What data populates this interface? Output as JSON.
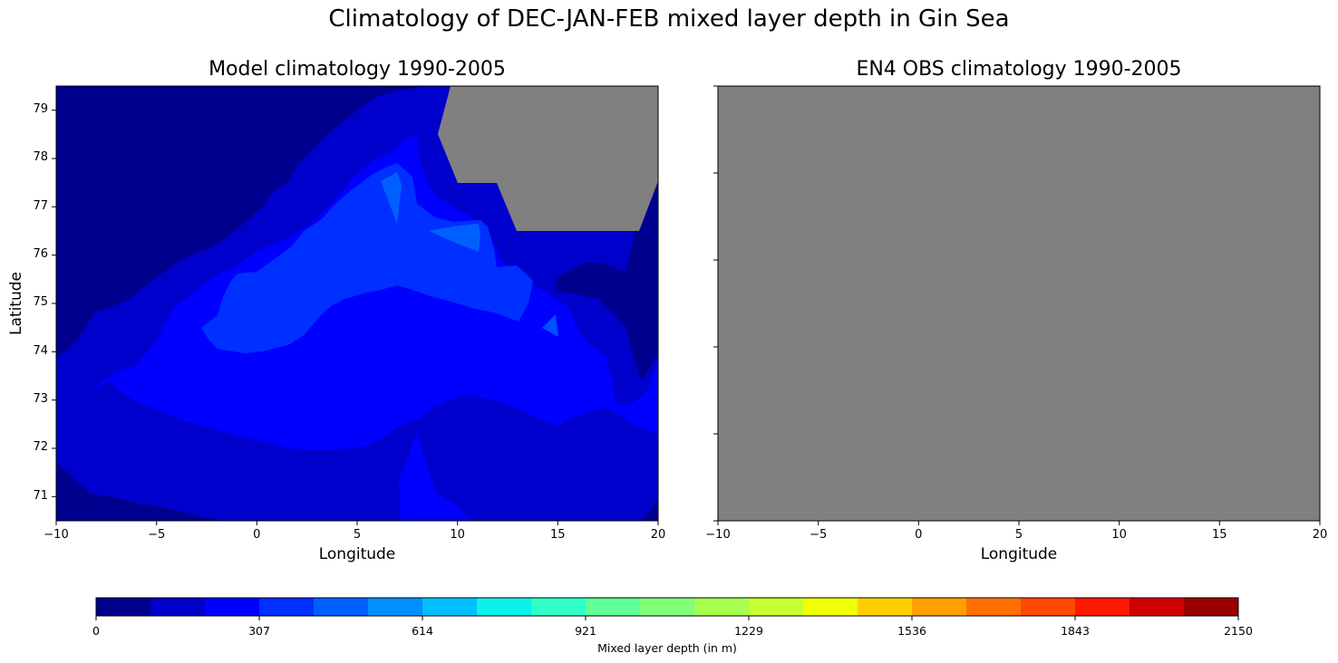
{
  "figure": {
    "suptitle": "Climatology of DEC-JAN-FEB mixed layer depth in Gin Sea",
    "land_color": "#808080"
  },
  "panels": {
    "left": {
      "title": "Model climatology 1990-2005",
      "xlabel": "Longitude",
      "ylabel": "Latitude",
      "xticks": [
        "−10",
        "−5",
        "0",
        "5",
        "10",
        "15",
        "20"
      ],
      "yticks": [
        "79",
        "78",
        "77",
        "76",
        "75",
        "74",
        "73",
        "72",
        "71"
      ]
    },
    "right": {
      "title": "EN4 OBS climatology 1990-2005",
      "xlabel": "Longitude",
      "xticks": [
        "−10",
        "−5",
        "0",
        "5",
        "10",
        "15",
        "20"
      ]
    }
  },
  "colorbar": {
    "label": "Mixed layer depth (in m)",
    "ticks": [
      "0",
      "307",
      "614",
      "921",
      "1229",
      "1536",
      "1843",
      "2150"
    ],
    "colors": [
      "#00008f",
      "#0000cc",
      "#0000ff",
      "#0030ff",
      "#0060ff",
      "#008fff",
      "#00c0ff",
      "#0cf0ec",
      "#30ffc8",
      "#60ff98",
      "#80ff78",
      "#a8ff50",
      "#c8ff30",
      "#f0ff08",
      "#ffd000",
      "#ffa000",
      "#ff7000",
      "#ff4800",
      "#ff1800",
      "#d00000",
      "#9a0000"
    ]
  },
  "chart_data": [
    {
      "type": "heatmap",
      "title": "Model climatology 1990-2005",
      "xlabel": "Longitude",
      "ylabel": "Latitude",
      "xlim": [
        -10,
        20
      ],
      "ylim": [
        70.5,
        79.5
      ],
      "x_ticks": [
        -10,
        -5,
        0,
        5,
        10,
        15,
        20
      ],
      "y_ticks": [
        71,
        72,
        73,
        74,
        75,
        76,
        77,
        78,
        79
      ],
      "colorbar_range": [
        0,
        2150
      ],
      "levels": 21,
      "description": "Filled contours; values mostly in 0-512 m range (dark navy to medium blue). Deepest (~400-512 m) small patches near 7E,77.3N and 11E,76.5N and 15E,74.5N. Shallowest (0-102 m) along NW corner, east edge (18-20E, 73.5-76.5N) and SE/SW corners. Land (grey) in NE corner, ~9-20E, 76.5-79.5N (Svalbard).",
      "approx_regions": [
        {
          "range_m": "0-102",
          "area": "NW sector north of ~75N west of 7E; E edge 18-20E 73.5-76.5N; SW corner near 71N"
        },
        {
          "range_m": "102-205",
          "area": "band from -10E 74N to 6E 79N; southern band 70.5-73N"
        },
        {
          "range_m": "205-307",
          "area": "central band 72-75N"
        },
        {
          "range_m": "307-410",
          "area": "core -3E to 15E, 74-78N"
        },
        {
          "range_m": "410-512",
          "area": "small patches ~7E 77.3N, ~11E 76.5N, ~15E 74.5N"
        }
      ]
    },
    {
      "type": "heatmap",
      "title": "EN4 OBS climatology 1990-2005",
      "xlabel": "Longitude",
      "xlim": [
        -10,
        20
      ],
      "ylim": [
        70.5,
        79.5
      ],
      "x_ticks": [
        -10,
        -5,
        0,
        5,
        10,
        15,
        20
      ],
      "description": "Entire panel filled grey (no data / masked)."
    }
  ]
}
